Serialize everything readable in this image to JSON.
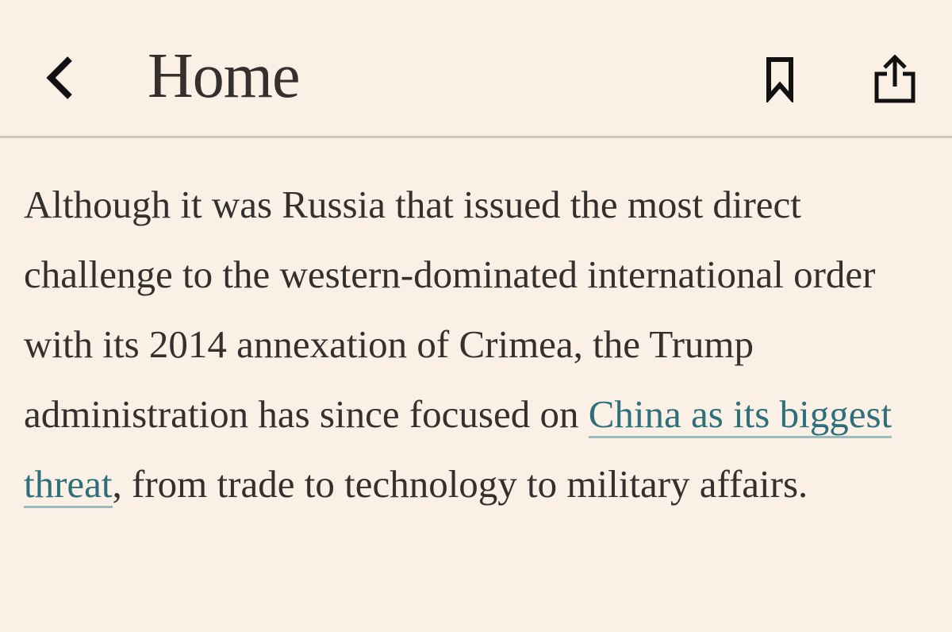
{
  "nav": {
    "title": "Home",
    "back_icon": "chevron-left-icon",
    "bookmark_icon": "bookmark-icon",
    "share_icon": "share-icon"
  },
  "article": {
    "text_before_link": "Although it was Russia that issued the most direct challenge to the western-dominated international order with its 2014 annexation of Crimea, the Trump administration has since focused on ",
    "link_text": "China as its biggest threat",
    "text_after_link": ", from trade to technology to military affairs."
  },
  "colors": {
    "background": "#fbf0e6",
    "text": "#33302e",
    "link": "#2d6f7a",
    "divider": "#cfc6be"
  }
}
